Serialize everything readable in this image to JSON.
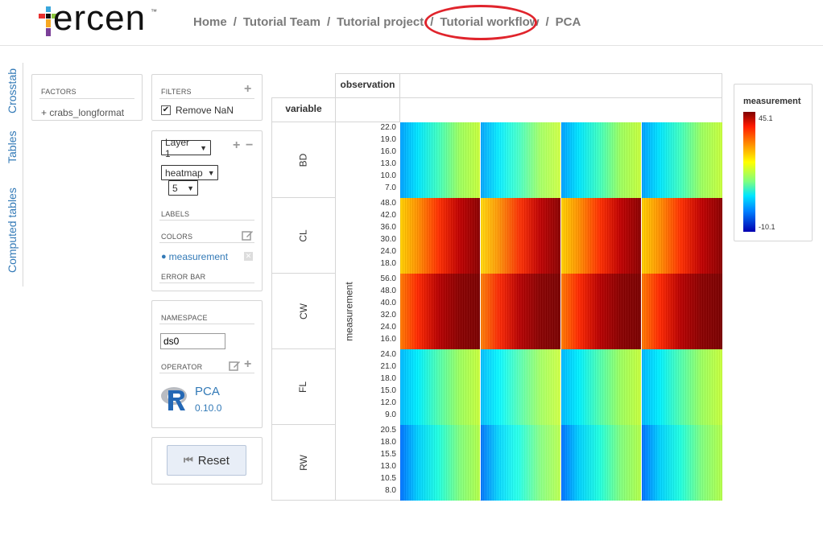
{
  "app": {
    "logo_text": "ercen",
    "logo_tm": "™"
  },
  "breadcrumb": [
    "Home",
    "Tutorial Team",
    "Tutorial project",
    "Tutorial workflow",
    "PCA"
  ],
  "breadcrumb_sep": "/",
  "side_tabs": [
    "Crosstab",
    "Tables",
    "Computed tables"
  ],
  "factors": {
    "header": "FACTORS",
    "items": [
      "crabs_longformat"
    ],
    "item_prefix": "+"
  },
  "filters": {
    "header": "FILTERS",
    "remove_nan_label": "Remove NaN",
    "remove_nan_checked": true
  },
  "layer": {
    "layer_select": "Layer 1",
    "chart_type_select": "heatmap",
    "size_select": "5",
    "labels_header": "LABELS",
    "colors_header": "COLORS",
    "color_factor": "measurement",
    "error_bar_header": "ERROR BAR"
  },
  "namespace": {
    "header": "NAMESPACE",
    "value": "ds0",
    "operator_header": "OPERATOR",
    "operator_name": "PCA",
    "operator_version": "0.10.0",
    "operator_icon": "r-language-icon"
  },
  "reset_label": "Reset",
  "crosstab": {
    "column_header": "observation",
    "row_header": "variable",
    "y_axis_label": "measurement",
    "rows": [
      {
        "label": "BD",
        "ticks": [
          "22.0",
          "19.0",
          "16.0",
          "13.0",
          "10.0",
          "7.0"
        ]
      },
      {
        "label": "CL",
        "ticks": [
          "48.0",
          "42.0",
          "36.0",
          "30.0",
          "24.0",
          "18.0"
        ]
      },
      {
        "label": "CW",
        "ticks": [
          "56.0",
          "48.0",
          "40.0",
          "32.0",
          "24.0",
          "16.0"
        ]
      },
      {
        "label": "FL",
        "ticks": [
          "24.0",
          "21.0",
          "18.0",
          "15.0",
          "12.0",
          "9.0"
        ]
      },
      {
        "label": "RW",
        "ticks": [
          "20.5",
          "18.0",
          "15.5",
          "13.0",
          "10.5",
          "8.0"
        ]
      }
    ]
  },
  "legend": {
    "title": "measurement",
    "max": "45.1",
    "min": "-10.1"
  },
  "colors": {
    "accent": "#337ab7",
    "annotation_circle": "#e0242c"
  }
}
